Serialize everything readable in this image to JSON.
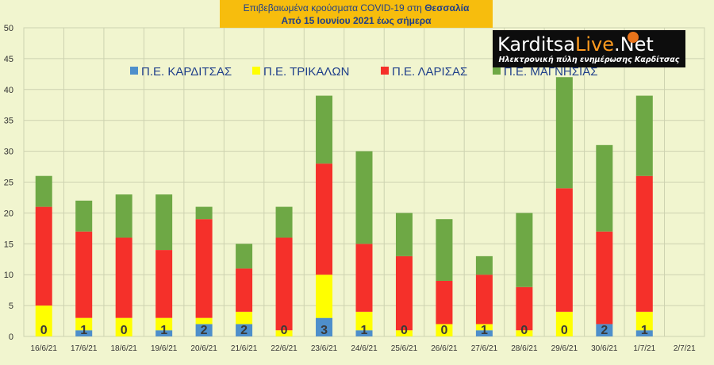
{
  "header": {
    "line1_prefix": "Επιβεβαιωμένα κρούσματα COVID-19 στη ",
    "line1_region": "Θεσσαλία",
    "line2": "Από 15 Ιουνίου 2021 έως σήμερα"
  },
  "logo": {
    "name_part1": "Karditsa",
    "name_part2": "Live",
    "name_part3": ".Net",
    "tagline": "Ηλεκτρονική πύλη ενημέρωσης Καρδίτσας"
  },
  "colors": {
    "background": "#f1f5cf",
    "karditsa": "#4e8fcb",
    "trikala": "#ffff00",
    "larisa": "#f5302a",
    "magnisia": "#6ea845",
    "grid": "#cdd2b0"
  },
  "chart_data": {
    "type": "bar",
    "stacked": true,
    "categories": [
      "16/6/21",
      "17/6/21",
      "18/6/21",
      "19/6/21",
      "20/6/21",
      "21/6/21",
      "22/6/21",
      "23/6/21",
      "24/6/21",
      "25/6/21",
      "26/6/21",
      "27/6/21",
      "28/6/21",
      "29/6/21",
      "30/6/21",
      "1/7/21",
      "2/7/21"
    ],
    "series": [
      {
        "name": "Π.Ε. ΚΑΡΔΙΤΣΑΣ",
        "values": [
          0,
          1,
          0,
          1,
          2,
          2,
          0,
          3,
          1,
          0,
          0,
          1,
          0,
          0,
          2,
          1,
          null
        ],
        "data_labels": [
          "0",
          "1",
          "0",
          "1",
          "2",
          "2",
          "0",
          "3",
          "1",
          "0",
          "0",
          "1",
          "0",
          "0",
          "2",
          "1",
          ""
        ]
      },
      {
        "name": "Π.Ε. ΤΡΙΚΑΛΩΝ",
        "values": [
          5,
          2,
          3,
          2,
          1,
          2,
          1,
          7,
          3,
          1,
          2,
          1,
          1,
          4,
          0,
          3,
          null
        ]
      },
      {
        "name": "Π.Ε. ΛΑΡΙΣΑΣ",
        "values": [
          16,
          14,
          13,
          11,
          16,
          7,
          15,
          18,
          11,
          12,
          7,
          8,
          7,
          20,
          15,
          22,
          null
        ]
      },
      {
        "name": "Π.Ε. ΜΑΓΝΗΣΙΑΣ",
        "values": [
          5,
          5,
          7,
          9,
          2,
          4,
          5,
          11,
          15,
          7,
          10,
          3,
          12,
          18,
          14,
          13,
          null
        ]
      }
    ],
    "ylim": [
      0,
      50
    ],
    "yticks": [
      "0",
      "5",
      "10",
      "15",
      "20",
      "25",
      "30",
      "35",
      "40",
      "45",
      "50"
    ],
    "grid": true,
    "legend_position": "top"
  }
}
